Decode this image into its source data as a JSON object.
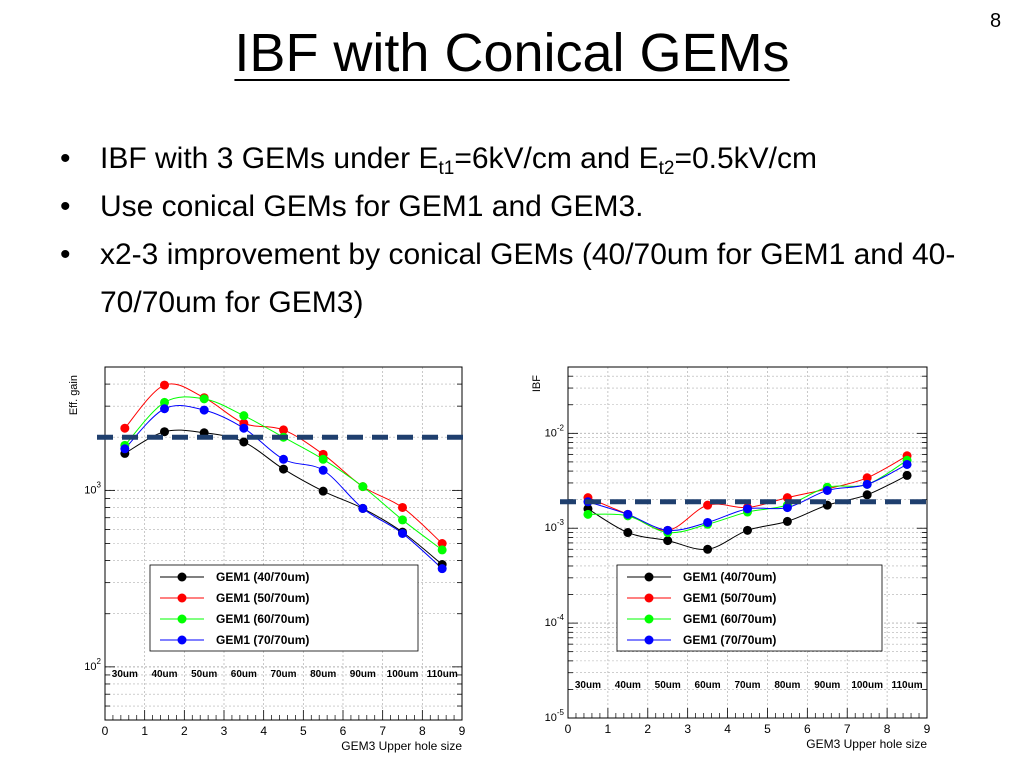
{
  "slide": {
    "number": "8",
    "title": "IBF with Conical GEMs",
    "bullets": [
      {
        "parts": [
          {
            "text": "IBF with 3 GEMs under E"
          },
          {
            "text": "t1",
            "sub": true
          },
          {
            "text": "=6kV/cm and E"
          },
          {
            "text": "t2",
            "sub": true
          },
          {
            "text": "=0.5kV/cm"
          }
        ]
      },
      {
        "parts": [
          {
            "text": "Use conical GEMs for GEM1 and GEM3."
          }
        ]
      },
      {
        "parts": [
          {
            "text": "x2-3 improvement by conical GEMs (40/70um for GEM1 and 40-70/70um for GEM3)"
          }
        ]
      }
    ],
    "bullet_glyph": "•"
  },
  "colors": {
    "s1": "#000000",
    "s2": "#ff0000",
    "s3": "#00ff00",
    "s4": "#0000ff",
    "dashed_line": "#1f3f6e",
    "grid": "#b0b0b0"
  },
  "chart_data": [
    {
      "type": "line",
      "ylabel": "Eff. gain",
      "xlabel": "GEM3 Upper hole size",
      "log_y": true,
      "xlim": [
        0,
        9
      ],
      "ylim": [
        50,
        5000
      ],
      "x_ticks": [
        "0",
        "1",
        "2",
        "3",
        "4",
        "5",
        "6",
        "7",
        "8",
        "9"
      ],
      "y_ticks": [
        {
          "value": 100,
          "base": "10",
          "exp": "2"
        },
        {
          "value": 1000,
          "base": "10",
          "exp": "3"
        }
      ],
      "grid": true,
      "legend_position": "lower-center",
      "reference_line": 2000,
      "hole_labels": [
        "30um",
        "40um",
        "50um",
        "60um",
        "70um",
        "80um",
        "90um",
        "100um",
        "110um"
      ],
      "x": [
        0.5,
        1.5,
        2.5,
        3.5,
        4.5,
        5.5,
        6.5,
        7.5,
        8.5
      ],
      "series": [
        {
          "name": "GEM1 (40/70um)",
          "color_key": "s1",
          "values": [
            1620,
            2150,
            2120,
            1880,
            1320,
            990,
            790,
            580,
            380
          ]
        },
        {
          "name": "GEM1 (50/70um)",
          "color_key": "s2",
          "values": [
            2250,
            3950,
            3350,
            2400,
            2200,
            1600,
            1050,
            800,
            500
          ]
        },
        {
          "name": "GEM1 (60/70um)",
          "color_key": "s3",
          "values": [
            1800,
            3150,
            3300,
            2650,
            2000,
            1500,
            1050,
            680,
            460
          ]
        },
        {
          "name": "GEM1 (70/70um)",
          "color_key": "s4",
          "values": [
            1720,
            2900,
            2850,
            2250,
            1500,
            1300,
            790,
            570,
            360
          ]
        }
      ]
    },
    {
      "type": "line",
      "ylabel": "IBF",
      "xlabel": "GEM3 Upper hole size",
      "log_y": true,
      "xlim": [
        0,
        9
      ],
      "ylim": [
        1e-05,
        0.05
      ],
      "x_ticks": [
        "0",
        "1",
        "2",
        "3",
        "4",
        "5",
        "6",
        "7",
        "8",
        "9"
      ],
      "y_ticks": [
        {
          "value": 1e-05,
          "base": "10",
          "exp": "-5"
        },
        {
          "value": 0.0001,
          "base": "10",
          "exp": "-4"
        },
        {
          "value": 0.001,
          "base": "10",
          "exp": "-3"
        },
        {
          "value": 0.01,
          "base": "10",
          "exp": "-2"
        }
      ],
      "grid": true,
      "legend_position": "lower-center",
      "reference_line": 0.0019,
      "hole_labels": [
        "30um",
        "40um",
        "50um",
        "60um",
        "70um",
        "80um",
        "90um",
        "100um",
        "110um"
      ],
      "x": [
        0.5,
        1.5,
        2.5,
        3.5,
        4.5,
        5.5,
        6.5,
        7.5,
        8.5
      ],
      "series": [
        {
          "name": "GEM1 (40/70um)",
          "color_key": "s1",
          "values": [
            0.0016,
            0.0009,
            0.00074,
            0.0006,
            0.00095,
            0.00118,
            0.00175,
            0.00225,
            0.0036
          ]
        },
        {
          "name": "GEM1 (50/70um)",
          "color_key": "s2",
          "values": [
            0.0021,
            0.0014,
            0.00095,
            0.00175,
            0.00165,
            0.0021,
            0.0026,
            0.0034,
            0.0058
          ]
        },
        {
          "name": "GEM1 (60/70um)",
          "color_key": "s3",
          "values": [
            0.0014,
            0.00135,
            0.0009,
            0.0011,
            0.00148,
            0.00175,
            0.0027,
            0.0029,
            0.0052
          ]
        },
        {
          "name": "GEM1 (70/70um)",
          "color_key": "s4",
          "values": [
            0.0019,
            0.0014,
            0.00095,
            0.00115,
            0.0016,
            0.00165,
            0.0025,
            0.0029,
            0.0047
          ]
        }
      ]
    }
  ]
}
